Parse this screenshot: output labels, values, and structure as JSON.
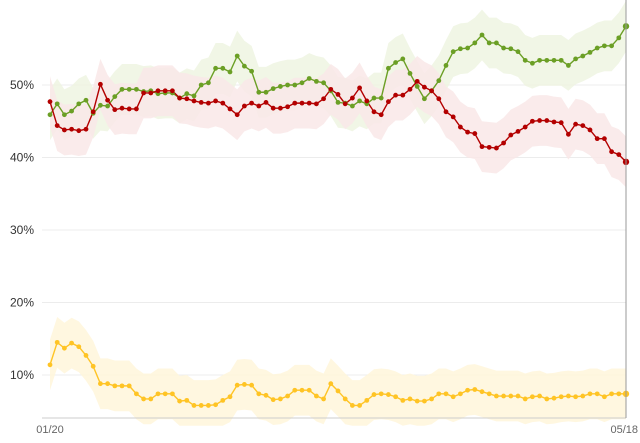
{
  "chart_data": {
    "type": "line",
    "title": "",
    "xlabel": "",
    "ylabel": "",
    "x_range": [
      "01/20",
      "05/18"
    ],
    "ylim": [
      3,
      60
    ],
    "y_ticks": [
      {
        "value": 10,
        "label": "10%"
      },
      {
        "value": 20,
        "label": "20%"
      },
      {
        "value": 30,
        "label": "30%"
      },
      {
        "value": 40,
        "label": "40%"
      },
      {
        "value": 50,
        "label": "50%"
      }
    ],
    "x_ticks": [
      {
        "index": 0,
        "label": "01/20"
      },
      {
        "index": 80,
        "label": "05/18"
      }
    ],
    "grid": "horizontal",
    "series": [
      {
        "color": "#6b9f25",
        "band_color": "#eef4e2",
        "values": [
          45.9,
          47.4,
          45.9,
          46.4,
          47.4,
          47.9,
          46.1,
          47.2,
          47.1,
          48.4,
          49.4,
          49.4,
          49.4,
          49.1,
          49.2,
          48.8,
          48.9,
          48.9,
          48.2,
          48.8,
          48.5,
          50.0,
          50.3,
          52.3,
          52.3,
          51.8,
          54.0,
          52.6,
          51.9,
          49.0,
          49.0,
          49.5,
          49.8,
          50.0,
          50.0,
          50.3,
          50.9,
          50.5,
          50.3,
          49.2,
          47.6,
          47.5,
          47.1,
          47.8,
          47.4,
          48.2,
          48.2,
          52.3,
          53.1,
          53.6,
          51.6,
          49.8,
          48.1,
          49.2,
          50.6,
          52.7,
          54.6,
          55.0,
          55.1,
          55.8,
          56.9,
          55.8,
          55.8,
          55.1,
          55.0,
          54.6,
          53.4,
          53.0,
          53.4,
          53.4,
          53.4,
          53.4,
          52.7,
          53.6,
          54.0,
          54.5,
          55.1,
          55.4,
          55.4,
          56.5,
          58.1
        ]
      },
      {
        "color": "#b30000",
        "band_color": "#f9e8e8",
        "values": [
          47.7,
          44.4,
          43.8,
          43.9,
          43.7,
          43.9,
          46.3,
          50.1,
          47.9,
          46.6,
          46.8,
          46.7,
          46.7,
          48.9,
          48.9,
          49.2,
          49.2,
          49.2,
          48.2,
          48.1,
          47.8,
          47.6,
          47.5,
          47.8,
          47.5,
          46.7,
          45.9,
          47.1,
          47.5,
          47.1,
          47.6,
          46.8,
          46.8,
          47.0,
          47.5,
          47.5,
          47.5,
          47.4,
          48.1,
          49.4,
          48.7,
          47.4,
          48.2,
          49.6,
          47.8,
          46.3,
          45.9,
          47.7,
          48.6,
          48.6,
          49.4,
          50.5,
          49.7,
          49.2,
          48.1,
          46.3,
          45.6,
          44.2,
          43.5,
          43.3,
          41.5,
          41.4,
          41.3,
          42.0,
          43.1,
          43.6,
          44.2,
          45.0,
          45.1,
          45.1,
          44.9,
          44.8,
          43.2,
          44.6,
          44.4,
          43.8,
          42.6,
          42.6,
          40.8,
          40.4,
          39.4
        ]
      },
      {
        "color": "#ffc425",
        "band_color": "#fff6db",
        "values": [
          11.4,
          14.5,
          13.7,
          14.4,
          13.9,
          12.7,
          11.2,
          8.8,
          8.8,
          8.5,
          8.5,
          8.5,
          7.4,
          6.7,
          6.7,
          7.4,
          7.4,
          7.4,
          6.4,
          6.5,
          5.8,
          5.8,
          5.8,
          5.9,
          6.5,
          7.0,
          8.6,
          8.7,
          8.6,
          7.4,
          7.2,
          6.6,
          6.7,
          7.1,
          7.9,
          7.9,
          7.9,
          7.1,
          6.7,
          8.8,
          7.8,
          6.7,
          5.8,
          5.8,
          6.5,
          7.3,
          7.4,
          7.3,
          7.0,
          6.5,
          6.7,
          6.4,
          6.4,
          6.7,
          7.4,
          7.4,
          7.0,
          7.4,
          7.9,
          8.0,
          7.7,
          7.4,
          7.1,
          7.1,
          7.1,
          7.1,
          6.7,
          7.0,
          7.1,
          6.7,
          6.8,
          7.0,
          7.1,
          7.0,
          7.1,
          7.4,
          7.4,
          7.0,
          7.4,
          7.4,
          7.4
        ]
      }
    ]
  }
}
